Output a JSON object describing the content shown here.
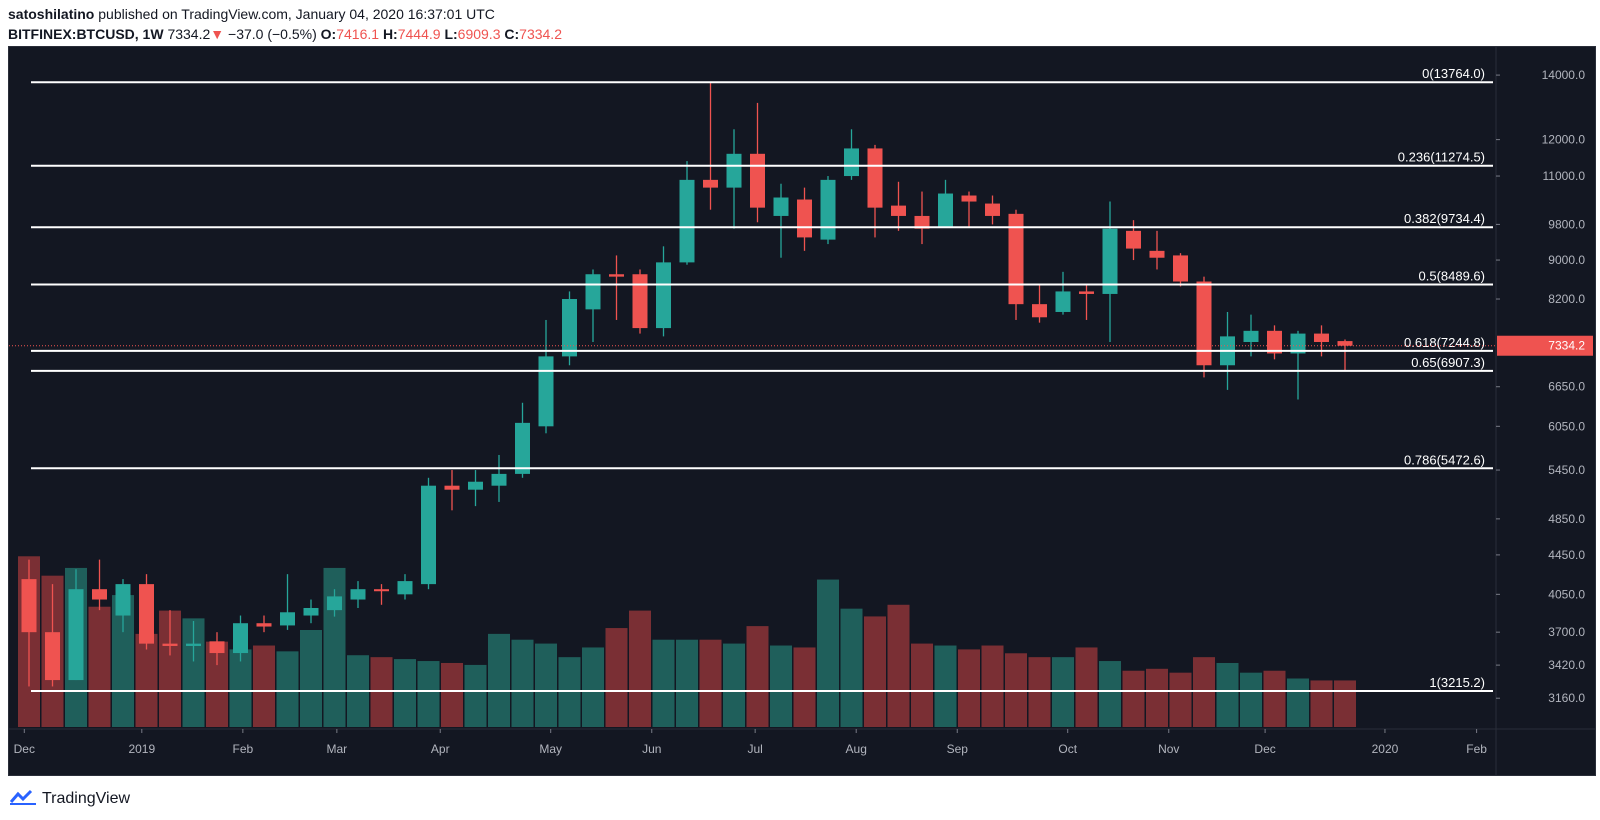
{
  "header": {
    "author": "satoshilatino",
    "published_text": "published on TradingView.com, January 04, 2020 16:37:01 UTC",
    "symbol": "BITFINEX:BTCUSD, 1W",
    "last": "7334.2",
    "change": "−37.0 (−0.5%)",
    "o_label": "O:",
    "o_value": "7416.1",
    "h_label": "H:",
    "h_value": "7444.9",
    "l_label": "L:",
    "l_value": "6909.3",
    "c_label": "C:",
    "c_value": "7334.2"
  },
  "footer": {
    "brand": "TradingView",
    "logo_icon": "tradingview-logo-icon"
  },
  "colors": {
    "background": "#131722",
    "up": "#26a69a",
    "down": "#ef5350",
    "vol_up": "#1f5f5b",
    "vol_down": "#7a2f34",
    "fib_line": "#ffffff",
    "axis_text": "#b2b5be",
    "price_line": "#ef5350"
  },
  "chart_data": {
    "type": "candlestick",
    "title": "BITFINEX:BTCUSD, 1W",
    "scale": "log",
    "ylim": [
      2950,
      14900
    ],
    "y_ticks": [
      "14000.0",
      "12000.0",
      "11000.0",
      "9800.0",
      "9000.0",
      "8200.0",
      "7334.2",
      "6650.0",
      "6050.0",
      "5450.0",
      "4850.0",
      "4450.0",
      "4050.0",
      "3700.0",
      "3420.0",
      "3160.0"
    ],
    "y_tick_values": [
      14000,
      12000,
      11000,
      9800,
      9000,
      8200,
      6650,
      6050,
      5450,
      4850,
      4450,
      4050,
      3700,
      3420,
      3160
    ],
    "last_price": 7334.2,
    "last_price_label": "7334.2",
    "x_labels": [
      "Dec",
      "2019",
      "Feb",
      "Mar",
      "Apr",
      "May",
      "Jun",
      "Jul",
      "Aug",
      "Sep",
      "Oct",
      "Nov",
      "Dec",
      "2020",
      "Feb"
    ],
    "x_label_weeks": [
      -0.2,
      4.8,
      9.1,
      13.1,
      17.5,
      22.2,
      26.5,
      30.9,
      35.2,
      39.5,
      44.2,
      48.5,
      52.6,
      57.7,
      61.6
    ],
    "fib_levels": [
      {
        "label": "0(13764.0)",
        "value": 13764.0
      },
      {
        "label": "0.236(11274.5)",
        "value": 11274.5
      },
      {
        "label": "0.382(9734.4)",
        "value": 9734.4
      },
      {
        "label": "0.5(8489.6)",
        "value": 8489.6
      },
      {
        "label": "0.618(7244.8)",
        "value": 7244.8
      },
      {
        "label": "0.65(6907.3)",
        "value": 6907.3
      },
      {
        "label": "0.786(5472.6)",
        "value": 5472.6
      },
      {
        "label": "1(3215.2)",
        "value": 3215.2
      }
    ],
    "candles": [
      {
        "o": 4200,
        "h": 4400,
        "l": 3250,
        "c": 3700
      },
      {
        "o": 3700,
        "h": 4150,
        "l": 3250,
        "c": 3300
      },
      {
        "o": 3300,
        "h": 4300,
        "l": 3300,
        "c": 4100
      },
      {
        "o": 4100,
        "h": 4400,
        "l": 3900,
        "c": 4000
      },
      {
        "o": 3850,
        "h": 4200,
        "l": 3700,
        "c": 4150
      },
      {
        "o": 4150,
        "h": 4250,
        "l": 3550,
        "c": 3600
      },
      {
        "o": 3600,
        "h": 3900,
        "l": 3500,
        "c": 3580
      },
      {
        "o": 3580,
        "h": 3800,
        "l": 3450,
        "c": 3600
      },
      {
        "o": 3620,
        "h": 3700,
        "l": 3420,
        "c": 3520
      },
      {
        "o": 3520,
        "h": 3850,
        "l": 3450,
        "c": 3780
      },
      {
        "o": 3780,
        "h": 3850,
        "l": 3700,
        "c": 3750
      },
      {
        "o": 3760,
        "h": 4250,
        "l": 3720,
        "c": 3880
      },
      {
        "o": 3850,
        "h": 4000,
        "l": 3780,
        "c": 3920
      },
      {
        "o": 3900,
        "h": 4100,
        "l": 3840,
        "c": 4030
      },
      {
        "o": 4000,
        "h": 4180,
        "l": 3920,
        "c": 4100
      },
      {
        "o": 4100,
        "h": 4150,
        "l": 3950,
        "c": 4080
      },
      {
        "o": 4050,
        "h": 4250,
        "l": 4000,
        "c": 4180
      },
      {
        "o": 4150,
        "h": 5350,
        "l": 4100,
        "c": 5250
      },
      {
        "o": 5250,
        "h": 5450,
        "l": 4950,
        "c": 5200
      },
      {
        "o": 5200,
        "h": 5450,
        "l": 5000,
        "c": 5300
      },
      {
        "o": 5250,
        "h": 5650,
        "l": 5050,
        "c": 5400
      },
      {
        "o": 5400,
        "h": 6400,
        "l": 5350,
        "c": 6100
      },
      {
        "o": 6050,
        "h": 7800,
        "l": 5950,
        "c": 7150
      },
      {
        "o": 7150,
        "h": 8350,
        "l": 7000,
        "c": 8200
      },
      {
        "o": 8000,
        "h": 8800,
        "l": 7400,
        "c": 8700
      },
      {
        "o": 8700,
        "h": 9100,
        "l": 7800,
        "c": 8650
      },
      {
        "o": 8700,
        "h": 8800,
        "l": 7550,
        "c": 7650
      },
      {
        "o": 7650,
        "h": 9300,
        "l": 7500,
        "c": 8950
      },
      {
        "o": 8950,
        "h": 11400,
        "l": 8900,
        "c": 10900
      },
      {
        "o": 10900,
        "h": 13764,
        "l": 10150,
        "c": 10700
      },
      {
        "o": 10700,
        "h": 12300,
        "l": 9700,
        "c": 11600
      },
      {
        "o": 11600,
        "h": 13100,
        "l": 9850,
        "c": 10200
      },
      {
        "o": 10000,
        "h": 10800,
        "l": 9050,
        "c": 10450
      },
      {
        "o": 10400,
        "h": 10700,
        "l": 9200,
        "c": 9500
      },
      {
        "o": 9450,
        "h": 11000,
        "l": 9350,
        "c": 10900
      },
      {
        "o": 11000,
        "h": 12300,
        "l": 10900,
        "c": 11750
      },
      {
        "o": 11750,
        "h": 11850,
        "l": 9500,
        "c": 10200
      },
      {
        "o": 10250,
        "h": 10850,
        "l": 9650,
        "c": 10000
      },
      {
        "o": 10000,
        "h": 10600,
        "l": 9350,
        "c": 9700
      },
      {
        "o": 9750,
        "h": 10900,
        "l": 9750,
        "c": 10550
      },
      {
        "o": 10500,
        "h": 10600,
        "l": 9750,
        "c": 10350
      },
      {
        "o": 10300,
        "h": 10500,
        "l": 9800,
        "c": 10000
      },
      {
        "o": 10050,
        "h": 10150,
        "l": 7800,
        "c": 8100
      },
      {
        "o": 8100,
        "h": 8500,
        "l": 7750,
        "c": 7850
      },
      {
        "o": 7950,
        "h": 8750,
        "l": 7900,
        "c": 8350
      },
      {
        "o": 8350,
        "h": 8500,
        "l": 7800,
        "c": 8300
      },
      {
        "o": 8300,
        "h": 10350,
        "l": 7400,
        "c": 9700
      },
      {
        "o": 9650,
        "h": 9900,
        "l": 9000,
        "c": 9250
      },
      {
        "o": 9200,
        "h": 9650,
        "l": 8800,
        "c": 9050
      },
      {
        "o": 9100,
        "h": 9150,
        "l": 8450,
        "c": 8550
      },
      {
        "o": 8550,
        "h": 8650,
        "l": 6800,
        "c": 7000
      },
      {
        "o": 7000,
        "h": 7950,
        "l": 6600,
        "c": 7500
      },
      {
        "o": 7400,
        "h": 7900,
        "l": 7150,
        "c": 7600
      },
      {
        "o": 7600,
        "h": 7700,
        "l": 7100,
        "c": 7200
      },
      {
        "o": 7200,
        "h": 7600,
        "l": 6450,
        "c": 7550
      },
      {
        "o": 7550,
        "h": 7700,
        "l": 7150,
        "c": 7400
      },
      {
        "o": 7416.1,
        "h": 7444.9,
        "l": 6909.3,
        "c": 7334.2
      }
    ],
    "volumes": [
      88,
      78,
      82,
      62,
      68,
      48,
      60,
      56,
      44,
      40,
      42,
      39,
      50,
      82,
      37,
      36,
      35,
      34,
      33,
      32,
      48,
      45,
      43,
      36,
      41,
      51,
      60,
      45,
      45,
      45,
      43,
      52,
      42,
      41,
      76,
      61,
      57,
      63,
      43,
      42,
      40,
      42,
      38,
      36,
      36,
      41,
      34,
      29,
      30,
      28,
      36,
      33,
      28,
      29,
      25,
      24,
      24
    ]
  }
}
